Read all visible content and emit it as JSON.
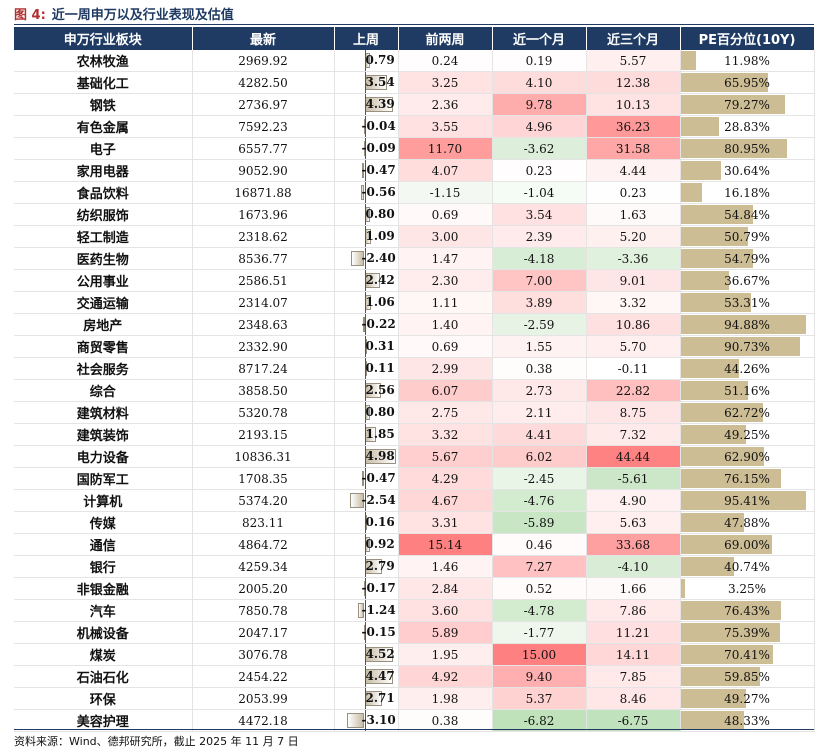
{
  "figure": {
    "label": "图 4:",
    "title": "近一周申万以及行业表现及估值"
  },
  "headers": [
    "申万行业板块",
    "最新",
    "上周",
    "前两周",
    "近一个月",
    "近三个月",
    "PE百分位(10Y)"
  ],
  "rows": [
    {
      "name": "农林牧渔",
      "latest": "2969.92",
      "wk": 0.79,
      "wk_label": "0.79",
      "w2": "0.24",
      "m1": "0.19",
      "m3": "5.57",
      "pe": 11.98,
      "pe_label": "11.98%"
    },
    {
      "name": "基础化工",
      "latest": "4282.50",
      "wk": 3.54,
      "wk_label": "3.54",
      "w2": "3.25",
      "m1": "4.10",
      "m3": "12.38",
      "pe": 65.95,
      "pe_label": "65.95%"
    },
    {
      "name": "钢铁",
      "latest": "2736.97",
      "wk": 4.39,
      "wk_label": "4.39",
      "w2": "2.36",
      "m1": "9.78",
      "m3": "10.13",
      "pe": 79.27,
      "pe_label": "79.27%"
    },
    {
      "name": "有色金属",
      "latest": "7592.23",
      "wk": -0.04,
      "wk_label": "-0.04",
      "w2": "3.55",
      "m1": "4.96",
      "m3": "36.23",
      "pe": 28.83,
      "pe_label": "28.83%"
    },
    {
      "name": "电子",
      "latest": "6557.77",
      "wk": -0.09,
      "wk_label": "-0.09",
      "w2": "11.70",
      "m1": "-3.62",
      "m3": "31.58",
      "pe": 80.95,
      "pe_label": "80.95%"
    },
    {
      "name": "家用电器",
      "latest": "9052.90",
      "wk": -0.47,
      "wk_label": "-0.47",
      "w2": "4.07",
      "m1": "0.23",
      "m3": "4.44",
      "pe": 30.64,
      "pe_label": "30.64%"
    },
    {
      "name": "食品饮料",
      "latest": "16871.88",
      "wk": -0.56,
      "wk_label": "-0.56",
      "w2": "-1.15",
      "m1": "-1.04",
      "m3": "0.23",
      "pe": 16.18,
      "pe_label": "16.18%"
    },
    {
      "name": "纺织服饰",
      "latest": "1673.96",
      "wk": 0.8,
      "wk_label": "0.80",
      "w2": "0.69",
      "m1": "3.54",
      "m3": "1.63",
      "pe": 54.84,
      "pe_label": "54.84%"
    },
    {
      "name": "轻工制造",
      "latest": "2318.62",
      "wk": 1.09,
      "wk_label": "1.09",
      "w2": "3.00",
      "m1": "2.39",
      "m3": "5.20",
      "pe": 50.79,
      "pe_label": "50.79%"
    },
    {
      "name": "医药生物",
      "latest": "8536.77",
      "wk": -2.4,
      "wk_label": "-2.40",
      "w2": "1.47",
      "m1": "-4.18",
      "m3": "-3.36",
      "pe": 54.79,
      "pe_label": "54.79%"
    },
    {
      "name": "公用事业",
      "latest": "2586.51",
      "wk": 2.42,
      "wk_label": "2.42",
      "w2": "2.30",
      "m1": "7.00",
      "m3": "9.01",
      "pe": 36.67,
      "pe_label": "36.67%"
    },
    {
      "name": "交通运输",
      "latest": "2314.07",
      "wk": 1.06,
      "wk_label": "1.06",
      "w2": "1.11",
      "m1": "3.89",
      "m3": "3.32",
      "pe": 53.31,
      "pe_label": "53.31%"
    },
    {
      "name": "房地产",
      "latest": "2348.63",
      "wk": -0.22,
      "wk_label": "-0.22",
      "w2": "1.40",
      "m1": "-2.59",
      "m3": "10.86",
      "pe": 94.88,
      "pe_label": "94.88%"
    },
    {
      "name": "商贸零售",
      "latest": "2332.90",
      "wk": 0.31,
      "wk_label": "0.31",
      "w2": "0.69",
      "m1": "1.55",
      "m3": "5.70",
      "pe": 90.73,
      "pe_label": "90.73%"
    },
    {
      "name": "社会服务",
      "latest": "8717.24",
      "wk": 0.11,
      "wk_label": "0.11",
      "w2": "2.99",
      "m1": "0.38",
      "m3": "-0.11",
      "pe": 44.26,
      "pe_label": "44.26%"
    },
    {
      "name": "综合",
      "latest": "3858.50",
      "wk": 2.56,
      "wk_label": "2.56",
      "w2": "6.07",
      "m1": "2.73",
      "m3": "22.82",
      "pe": 51.16,
      "pe_label": "51.16%"
    },
    {
      "name": "建筑材料",
      "latest": "5320.78",
      "wk": 0.8,
      "wk_label": "0.80",
      "w2": "2.75",
      "m1": "2.11",
      "m3": "8.75",
      "pe": 62.72,
      "pe_label": "62.72%"
    },
    {
      "name": "建筑装饰",
      "latest": "2193.15",
      "wk": 1.85,
      "wk_label": "1.85",
      "w2": "3.32",
      "m1": "4.41",
      "m3": "7.32",
      "pe": 49.25,
      "pe_label": "49.25%"
    },
    {
      "name": "电力设备",
      "latest": "10836.31",
      "wk": 4.98,
      "wk_label": "4.98",
      "w2": "5.67",
      "m1": "6.02",
      "m3": "44.44",
      "pe": 62.9,
      "pe_label": "62.90%"
    },
    {
      "name": "国防军工",
      "latest": "1708.35",
      "wk": -0.47,
      "wk_label": "-0.47",
      "w2": "4.29",
      "m1": "-2.45",
      "m3": "-5.61",
      "pe": 76.15,
      "pe_label": "76.15%"
    },
    {
      "name": "计算机",
      "latest": "5374.20",
      "wk": -2.54,
      "wk_label": "-2.54",
      "w2": "4.67",
      "m1": "-4.76",
      "m3": "4.90",
      "pe": 95.41,
      "pe_label": "95.41%"
    },
    {
      "name": "传媒",
      "latest": "823.11",
      "wk": 0.16,
      "wk_label": "0.16",
      "w2": "3.31",
      "m1": "-5.89",
      "m3": "5.63",
      "pe": 47.88,
      "pe_label": "47.88%"
    },
    {
      "name": "通信",
      "latest": "4864.72",
      "wk": 0.92,
      "wk_label": "0.92",
      "w2": "15.14",
      "m1": "0.46",
      "m3": "33.68",
      "pe": 69.0,
      "pe_label": "69.00%"
    },
    {
      "name": "银行",
      "latest": "4259.34",
      "wk": 2.79,
      "wk_label": "2.79",
      "w2": "1.46",
      "m1": "7.27",
      "m3": "-4.10",
      "pe": 40.74,
      "pe_label": "40.74%"
    },
    {
      "name": "非银金融",
      "latest": "2005.20",
      "wk": -0.17,
      "wk_label": "-0.17",
      "w2": "2.84",
      "m1": "0.52",
      "m3": "1.66",
      "pe": 3.25,
      "pe_label": "3.25%"
    },
    {
      "name": "汽车",
      "latest": "7850.78",
      "wk": -1.24,
      "wk_label": "-1.24",
      "w2": "3.60",
      "m1": "-4.78",
      "m3": "7.86",
      "pe": 76.43,
      "pe_label": "76.43%"
    },
    {
      "name": "机械设备",
      "latest": "2047.17",
      "wk": -0.15,
      "wk_label": "-0.15",
      "w2": "5.89",
      "m1": "-1.77",
      "m3": "11.21",
      "pe": 75.39,
      "pe_label": "75.39%"
    },
    {
      "name": "煤炭",
      "latest": "3076.78",
      "wk": 4.52,
      "wk_label": "4.52",
      "w2": "1.95",
      "m1": "15.00",
      "m3": "14.11",
      "pe": 70.41,
      "pe_label": "70.41%"
    },
    {
      "name": "石油石化",
      "latest": "2454.22",
      "wk": 4.47,
      "wk_label": "4.47",
      "w2": "4.92",
      "m1": "9.40",
      "m3": "7.85",
      "pe": 59.85,
      "pe_label": "59.85%"
    },
    {
      "name": "环保",
      "latest": "2053.99",
      "wk": 2.71,
      "wk_label": "2.71",
      "w2": "1.98",
      "m1": "5.37",
      "m3": "8.46",
      "pe": 49.27,
      "pe_label": "49.27%"
    },
    {
      "name": "美容护理",
      "latest": "4472.18",
      "wk": -3.1,
      "wk_label": "-3.10",
      "w2": "0.38",
      "m1": "-6.82",
      "m3": "-6.75",
      "pe": 48.33,
      "pe_label": "48.33%"
    }
  ],
  "colors": {
    "header": "#1f3a63",
    "pos_heat": "#f08080",
    "neg_heat": "#8fc08f",
    "pe_bar": "#cdbd95"
  },
  "source": "资料来源：Wind、德邦研究所，截止 2025 年 11 月 7 日"
}
